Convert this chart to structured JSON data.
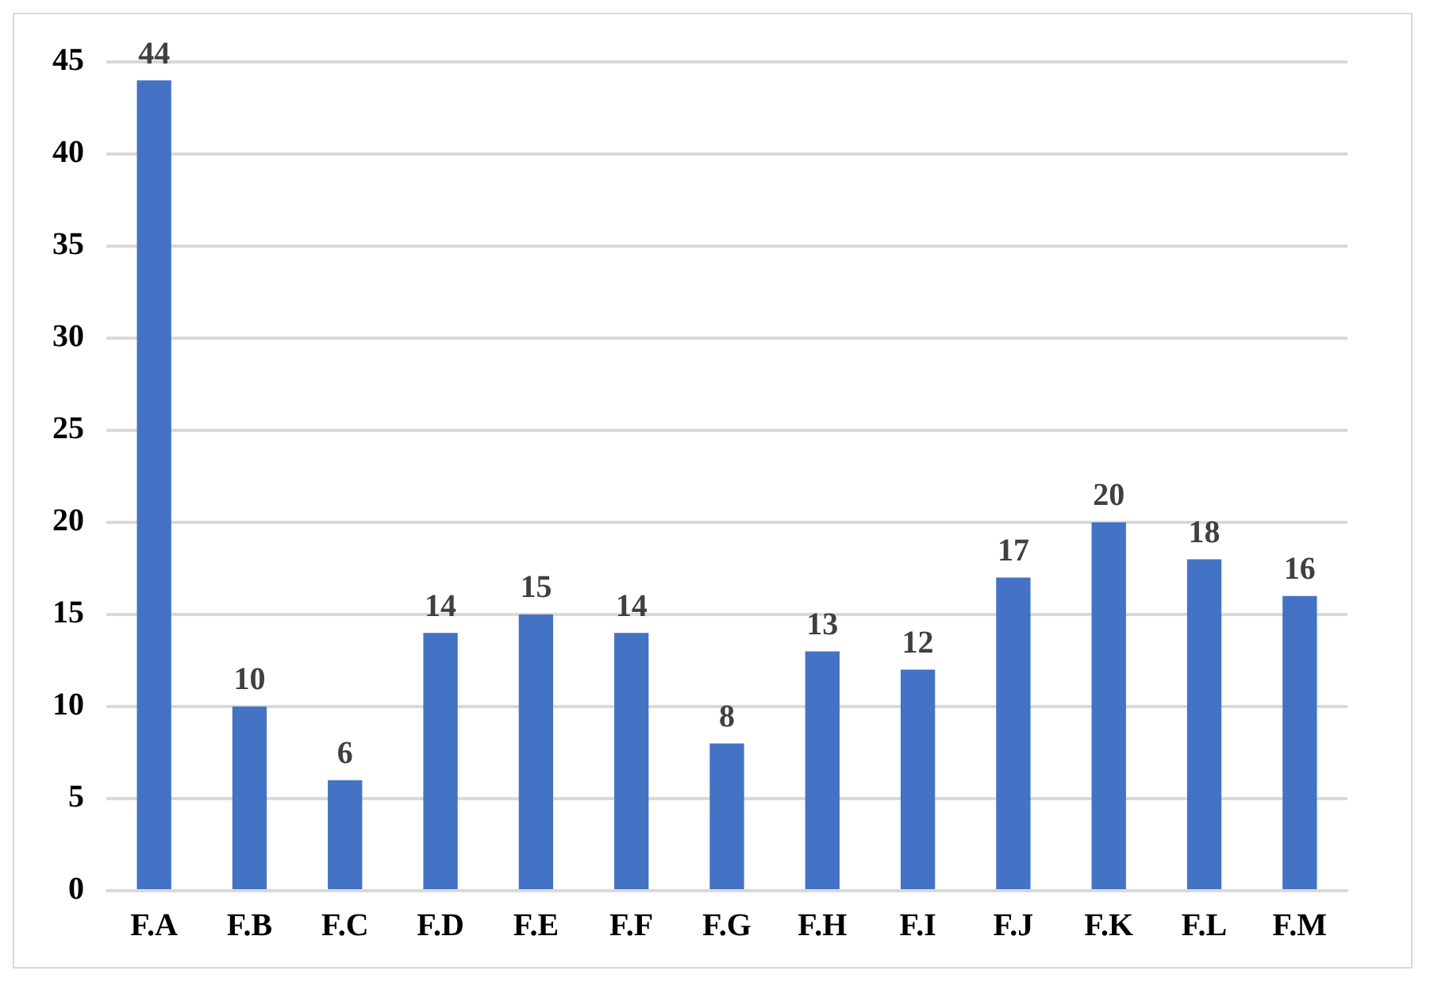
{
  "chart_data": {
    "type": "bar",
    "categories": [
      "F.A",
      "F.B",
      "F.C",
      "F.D",
      "F.E",
      "F.F",
      "F.G",
      "F.H",
      "F.I",
      "F.J",
      "F.K",
      "F.L",
      "F.M"
    ],
    "values": [
      44,
      10,
      6,
      14,
      15,
      14,
      8,
      13,
      12,
      17,
      20,
      18,
      16
    ],
    "color": "#4472c4",
    "ylim": [
      0,
      45
    ],
    "yticks": [
      0,
      5,
      10,
      15,
      20,
      25,
      30,
      35,
      40,
      45
    ],
    "grid": "y",
    "data_labels": true,
    "legend": false
  }
}
